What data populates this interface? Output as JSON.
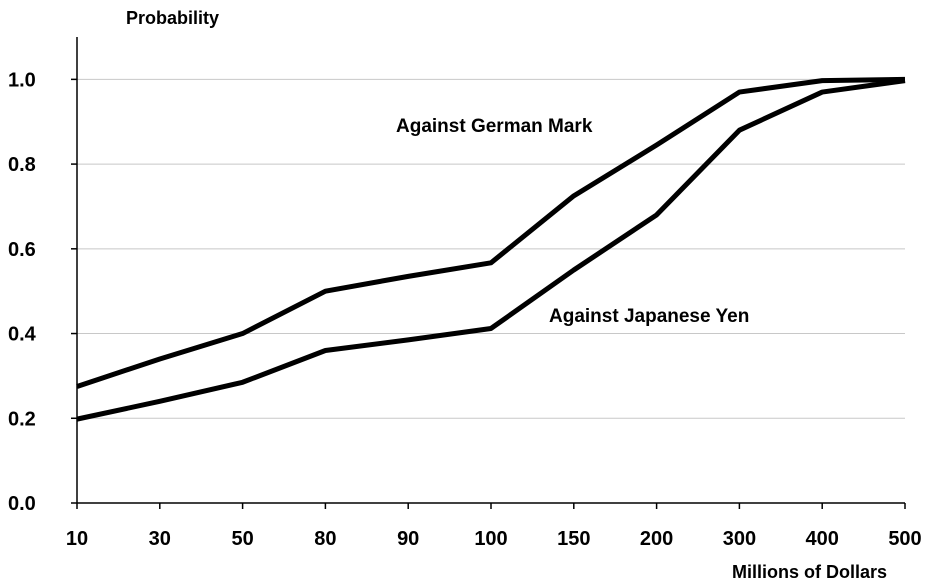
{
  "chart_data": {
    "type": "line",
    "title": "",
    "ylabel": "Probability",
    "xlabel": "Millions of Dollars",
    "categories": [
      "10",
      "30",
      "50",
      "80",
      "90",
      "100",
      "150",
      "200",
      "300",
      "400",
      "500"
    ],
    "ylim": [
      0,
      1.1
    ],
    "yticks": [
      "0.0",
      "0.2",
      "0.4",
      "0.6",
      "0.8",
      "1.0"
    ],
    "grid": true,
    "line_color": "#000000",
    "grid_color": "#c8c8c8",
    "series": [
      {
        "name": "Against German Mark",
        "values": [
          0.275,
          0.34,
          0.4,
          0.5,
          0.535,
          0.567,
          0.725,
          0.845,
          0.97,
          0.997,
          1.0
        ]
      },
      {
        "name": "Against Japanese Yen",
        "values": [
          0.198,
          0.24,
          0.285,
          0.36,
          0.385,
          0.412,
          0.55,
          0.68,
          0.88,
          0.97,
          0.997
        ]
      }
    ]
  }
}
